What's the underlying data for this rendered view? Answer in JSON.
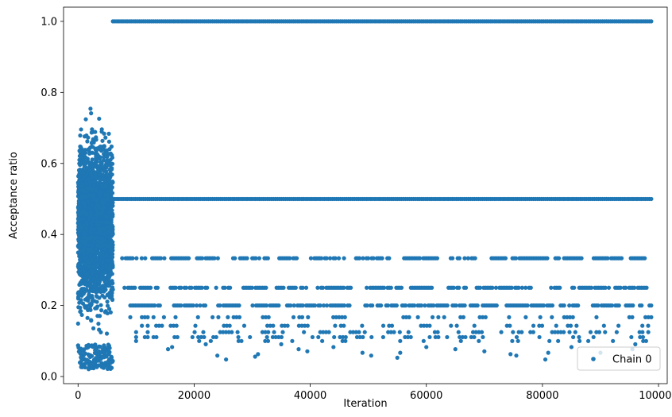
{
  "chart_data": {
    "type": "scatter",
    "xlabel": "Iteration",
    "ylabel": "Acceptance ratio",
    "xlim": [
      -2500,
      101500
    ],
    "ylim": [
      -0.02,
      1.04
    ],
    "x_ticks": [
      0,
      20000,
      40000,
      60000,
      80000,
      100000
    ],
    "y_ticks": [
      0.0,
      0.2,
      0.4,
      0.6,
      0.8,
      1.0
    ],
    "x_tick_labels": [
      "0",
      "20000",
      "40000",
      "60000",
      "80000",
      "100000"
    ],
    "y_tick_labels": [
      "0.0",
      "0.2",
      "0.4",
      "0.6",
      "0.8",
      "1.0"
    ],
    "grid": false,
    "legend_position": "bottom-right",
    "series": [
      {
        "name": "Chain 0",
        "color": "#1f77b4",
        "marker": "circle",
        "burn_in_region": {
          "x_range": [
            0,
            6000
          ],
          "y_range": [
            0.02,
            0.87
          ],
          "dense_y_range": [
            0.1,
            0.75
          ]
        },
        "levels": [
          {
            "y": 1.0,
            "x_range": [
              6000,
              99000
            ],
            "density": "continuous"
          },
          {
            "y": 0.5,
            "x_range": [
              6000,
              99000
            ],
            "density": "continuous"
          },
          {
            "y": 0.333,
            "x_range": [
              7000,
              99000
            ],
            "density": "segmented"
          },
          {
            "y": 0.25,
            "x_range": [
              8000,
              99000
            ],
            "density": "segmented"
          },
          {
            "y": 0.2,
            "x_range": [
              9000,
              99000
            ],
            "density": "segmented"
          },
          {
            "y": 0.167,
            "x_range": [
              9000,
              99000
            ],
            "density": "sparse"
          },
          {
            "y": 0.143,
            "x_range": [
              10000,
              99000
            ],
            "density": "sparse"
          },
          {
            "y": 0.125,
            "x_range": [
              10000,
              99000
            ],
            "density": "sparse"
          },
          {
            "y": 0.111,
            "x_range": [
              10000,
              99000
            ],
            "density": "sparse"
          },
          {
            "y": 0.1,
            "x_range": [
              10000,
              99000
            ],
            "density": "very_sparse"
          }
        ],
        "low_outliers": [
          [
            15500,
            0.077
          ],
          [
            16200,
            0.083
          ],
          [
            22000,
            0.091
          ],
          [
            24000,
            0.059
          ],
          [
            25500,
            0.048
          ],
          [
            30500,
            0.056
          ],
          [
            31000,
            0.063
          ],
          [
            35000,
            0.091
          ],
          [
            38000,
            0.077
          ],
          [
            39500,
            0.071
          ],
          [
            44000,
            0.083
          ],
          [
            49000,
            0.067
          ],
          [
            50500,
            0.059
          ],
          [
            55000,
            0.053
          ],
          [
            55500,
            0.067
          ],
          [
            60000,
            0.083
          ],
          [
            65000,
            0.077
          ],
          [
            70000,
            0.071
          ],
          [
            74500,
            0.063
          ],
          [
            75500,
            0.059
          ],
          [
            80500,
            0.048
          ],
          [
            81000,
            0.067
          ],
          [
            85000,
            0.083
          ],
          [
            90000,
            0.067
          ],
          [
            95500,
            0.077
          ],
          [
            96000,
            0.091
          ]
        ]
      }
    ]
  }
}
